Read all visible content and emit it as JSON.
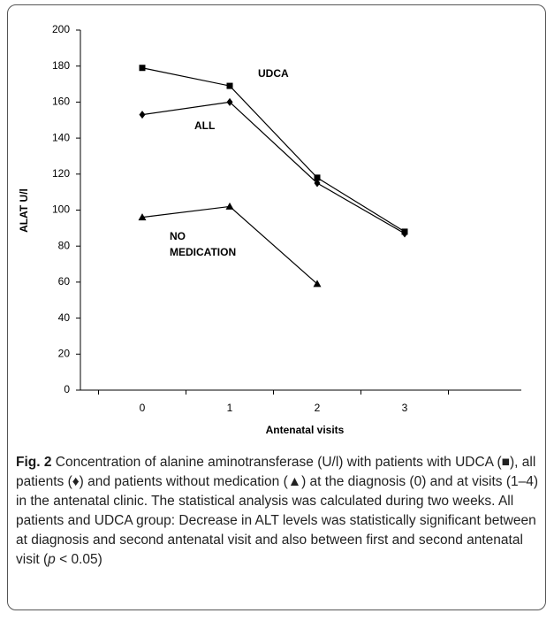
{
  "chart_data": {
    "type": "line",
    "y_label": "ALAT U/l",
    "x_label": "Antenatal visits",
    "categories": [
      "0",
      "1",
      "2",
      "3"
    ],
    "series": [
      {
        "name": "UDCA",
        "color": "#000000",
        "marker": "square",
        "values": [
          179,
          169,
          118,
          88
        ]
      },
      {
        "name": "ALL",
        "color": "#000000",
        "marker": "diamond",
        "values": [
          153,
          160,
          115,
          87
        ]
      },
      {
        "name": "NO MEDICATION",
        "color": "#000000",
        "marker": "triangle",
        "values": [
          96,
          102,
          59,
          null
        ]
      }
    ],
    "ylim": [
      0,
      200
    ],
    "yticks": [
      0,
      20,
      40,
      60,
      80,
      100,
      120,
      140,
      160,
      180,
      200
    ],
    "grid": false
  },
  "caption": {
    "label": "Fig. 2",
    "text": "Concentration of alanine aminotransferase (U/l) with patients with UDCA (■), all patients (♦) and patients without medication (▲) at the diagnosis (0) and at visits (1–4) in the antenatal clinic. The statistical analysis was calculated during two weeks. All patients and UDCA group: Decrease in ALT levels was statistically significant between at diagnosis and second antenatal visit and also between first and second antenatal visit (",
    "italic": "p",
    "text_end": " < 0.05)"
  }
}
